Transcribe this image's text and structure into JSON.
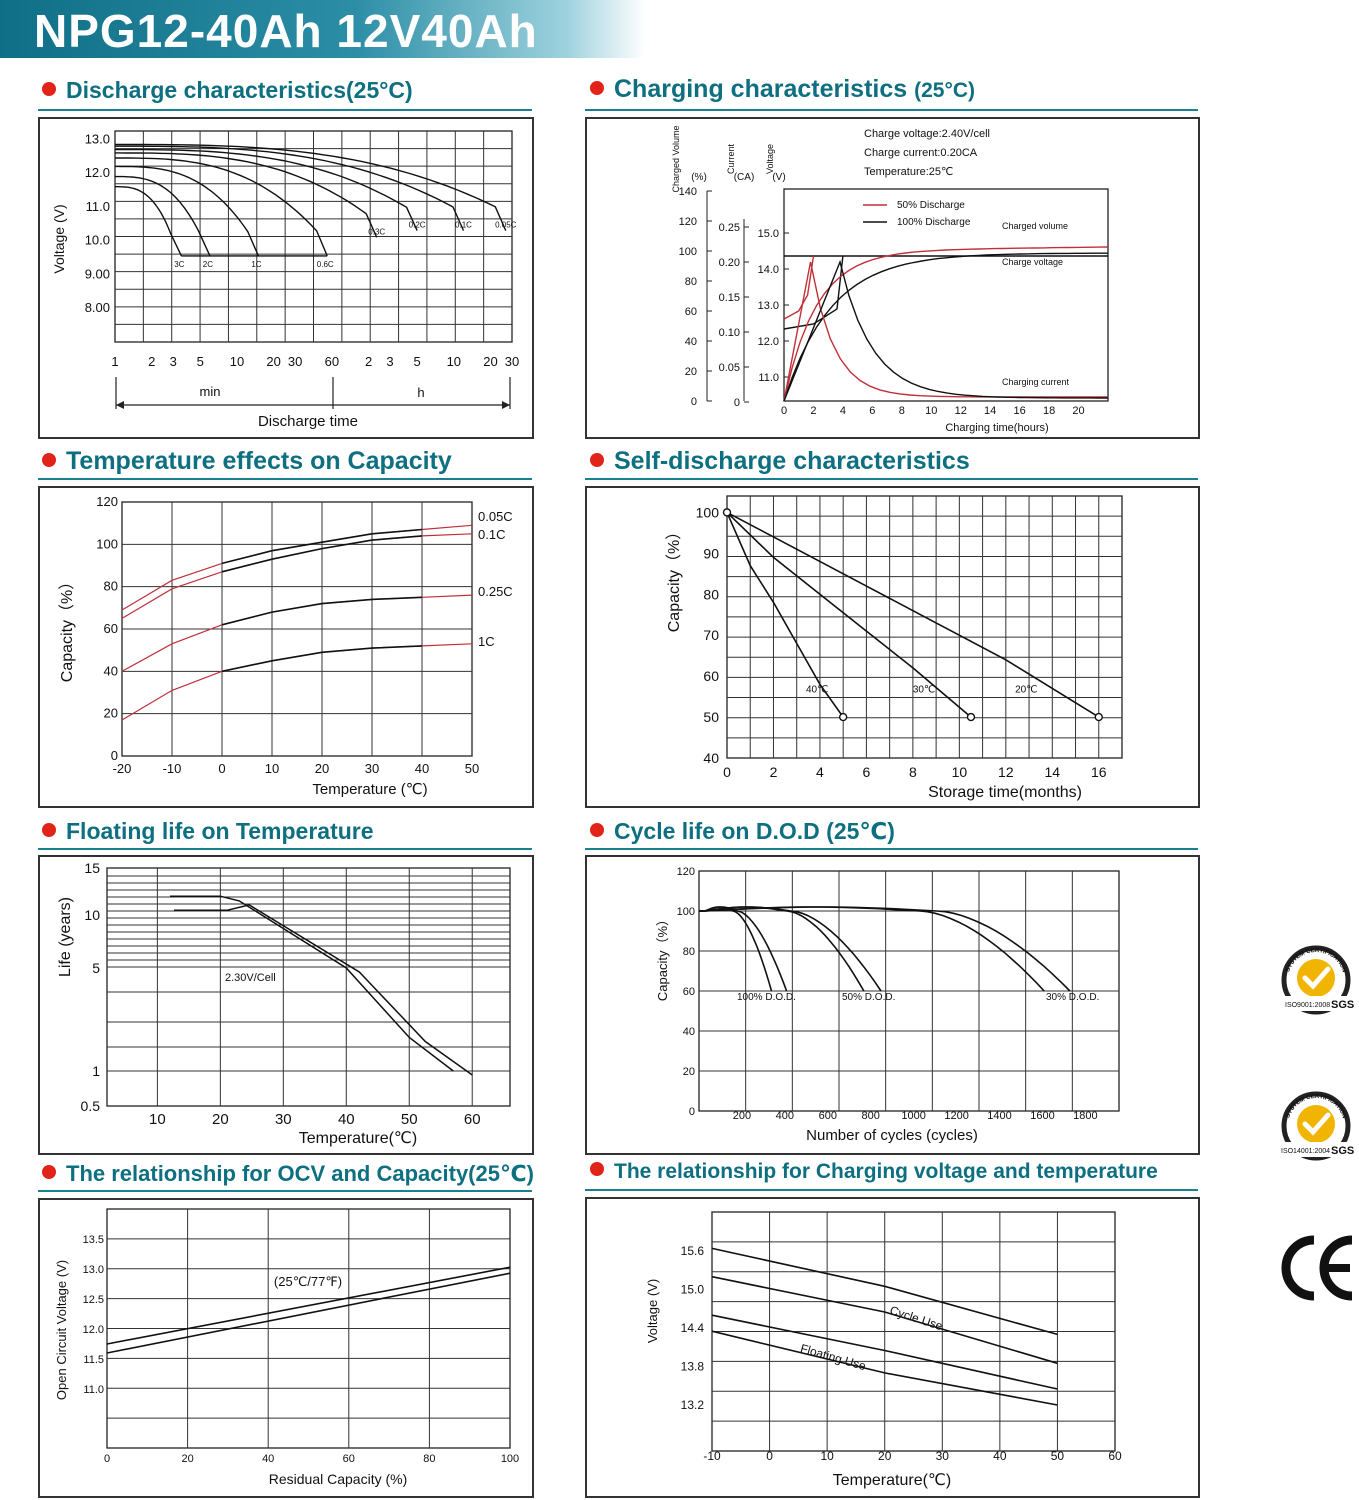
{
  "header": {
    "title": "NPG12-40Ah 12V40Ah",
    "accent": "#0f6f86"
  },
  "sections": {
    "discharge": "Discharge characteristics(25°C)",
    "charging": "Charging characteristics",
    "charging_suffix": "(25°C)",
    "temperature": "Temperature effects on Capacity",
    "self_discharge": "Self-discharge characteristics",
    "floating": "Floating life on Temperature",
    "cycle": "Cycle life on D.O.D (25℃)",
    "ocv": "The relationship for OCV and Capacity(25℃)",
    "charge_voltage": "The relationship for Charging voltage and temperature"
  },
  "certifications": {
    "iso9001_ring": "SYSTEM CERTIFICATION",
    "iso9001_std": "ISO9001:2008",
    "iso9001_brand": "SGS",
    "iso14001_ring": "SYSTEM CERTIFICATION",
    "iso14001_std": "ISO14001:2004",
    "iso14001_brand": "SGS",
    "ce_mark": "CE"
  },
  "chart_data": [
    {
      "id": "discharge",
      "type": "line",
      "title": "Discharge characteristics(25°C)",
      "ylabel": "Voltage (V)",
      "xlabel": "Discharge time",
      "y_ticks": [
        "13.0",
        "12.0",
        "11.0",
        "10.0",
        "9.00",
        "8.00"
      ],
      "x_ticks": [
        "1",
        "2",
        "3",
        "5",
        "10",
        "20",
        "30",
        "60",
        "2",
        "3",
        "5",
        "10",
        "20",
        "30"
      ],
      "x_units": [
        "min",
        "h"
      ],
      "series": [
        {
          "name": "3C",
          "end_min": 3.5
        },
        {
          "name": "2C",
          "end_min": 6
        },
        {
          "name": "1C",
          "end_min": 15
        },
        {
          "name": "0.6C",
          "end_min": 55
        },
        {
          "name": "0.3C",
          "end_min": 140
        },
        {
          "name": "0.2C",
          "end_min": 300
        },
        {
          "name": "0.1C",
          "end_min": 720
        },
        {
          "name": "0.05C",
          "end_min": 1600
        }
      ]
    },
    {
      "id": "charging",
      "type": "line",
      "notes": [
        "Charge voltage:2.40V/cell",
        "Charge current:0.20CA",
        "Temperature:25℃"
      ],
      "axis_names": [
        "Charged Volume",
        "Current",
        "Voltage"
      ],
      "axis_units": [
        "(%)",
        "(CA)",
        "(V)"
      ],
      "volume_ticks": [
        "140",
        "120",
        "100",
        "80",
        "60",
        "40",
        "20",
        "0"
      ],
      "current_ticks": [
        "0.25",
        "0.20",
        "0.15",
        "0.10",
        "0.05",
        "0"
      ],
      "voltage_ticks": [
        "15.0",
        "14.0",
        "13.0",
        "12.0",
        "11.0"
      ],
      "x_ticks": [
        "0",
        "2",
        "4",
        "6",
        "8",
        "10",
        "12",
        "14",
        "16",
        "18",
        "20"
      ],
      "xlabel": "Charging time(hours)",
      "legend": [
        "50% Discharge",
        "100% Discharge"
      ],
      "labels": [
        "Charged volume",
        "Charge voltage",
        "Charging current"
      ]
    },
    {
      "id": "temperature",
      "type": "line",
      "ylabel": "Capacity（%）",
      "xlabel": "Temperature (℃)",
      "y_ticks": [
        "120",
        "100",
        "80",
        "60",
        "40",
        "20",
        "0"
      ],
      "x_ticks": [
        "-20",
        "-10",
        "0",
        "10",
        "20",
        "30",
        "40",
        "50"
      ],
      "series": [
        {
          "name": "0.05C",
          "x": [
            -20,
            -10,
            0,
            10,
            20,
            30,
            40,
            50
          ],
          "y": [
            69,
            83,
            91,
            97,
            101,
            105,
            107,
            109
          ]
        },
        {
          "name": "0.1C",
          "x": [
            -20,
            -10,
            0,
            10,
            20,
            30,
            40,
            50
          ],
          "y": [
            65,
            79,
            87,
            93,
            98,
            102,
            104,
            105
          ]
        },
        {
          "name": "0.25C",
          "x": [
            -20,
            -10,
            0,
            10,
            20,
            30,
            40,
            50
          ],
          "y": [
            40,
            53,
            62,
            68,
            72,
            74,
            75,
            76
          ]
        },
        {
          "name": "1C",
          "x": [
            -20,
            -10,
            0,
            10,
            20,
            30,
            40,
            50
          ],
          "y": [
            17,
            31,
            40,
            45,
            49,
            51,
            52,
            53
          ]
        }
      ]
    },
    {
      "id": "self_discharge",
      "type": "line",
      "ylabel": "Capacity（%）",
      "xlabel": "Storage time(months)",
      "y_ticks": [
        "100",
        "90",
        "80",
        "70",
        "60",
        "50",
        "40"
      ],
      "x_ticks": [
        "0",
        "2",
        "4",
        "6",
        "8",
        "10",
        "12",
        "14",
        "16"
      ],
      "series": [
        {
          "name": "40℃",
          "x": [
            0,
            1,
            2,
            3,
            4,
            5
          ],
          "y": [
            100,
            87,
            78,
            68,
            58,
            50
          ]
        },
        {
          "name": "30℃",
          "x": [
            0,
            2,
            4,
            6,
            8,
            10.5
          ],
          "y": [
            100,
            89,
            80,
            71,
            62,
            50
          ]
        },
        {
          "name": "20℃",
          "x": [
            0,
            3,
            6,
            9,
            12,
            16
          ],
          "y": [
            100,
            91,
            82,
            73,
            64,
            50
          ]
        }
      ]
    },
    {
      "id": "floating",
      "type": "line",
      "ylabel": "Life (years)",
      "xlabel": "Temperature(℃)",
      "y_ticks": [
        "15",
        "10",
        "5",
        "1",
        "0.5"
      ],
      "x_ticks": [
        "10",
        "20",
        "30",
        "40",
        "50",
        "60"
      ],
      "annotation": "2.30V/Cell",
      "series": [
        {
          "name": "2.30V/Cell",
          "x": [
            12,
            20,
            23,
            40,
            50,
            57
          ],
          "y": [
            12,
            12,
            11.5,
            5,
            2.3,
            1
          ]
        }
      ]
    },
    {
      "id": "cycle",
      "type": "line",
      "ylabel": "Capacity（%）",
      "xlabel": "Number of cycles (cycles)",
      "y_ticks": [
        "120",
        "100",
        "80",
        "60",
        "40",
        "20",
        "0"
      ],
      "x_ticks": [
        "200",
        "400",
        "600",
        "800",
        "1000",
        "1200",
        "1400",
        "1600",
        "1800"
      ],
      "series": [
        {
          "name": "100% D.O.D.",
          "end_cycles": [
            310,
            380
          ]
        },
        {
          "name": "50% D.O.D.",
          "end_cycles": [
            740,
            820
          ]
        },
        {
          "name": "30% D.O.D.",
          "end_cycles": [
            1580,
            1700
          ]
        }
      ],
      "labels": [
        "100% D.O.D.",
        "50% D.O.D.",
        "30% D.O.D."
      ]
    },
    {
      "id": "ocv",
      "type": "line",
      "ylabel": "Open Circuit Voltage (V)",
      "xlabel": "Residual Capacity (%)",
      "y_ticks": [
        "13.5",
        "13.0",
        "12.5",
        "12.0",
        "11.5",
        "11.0"
      ],
      "x_ticks": [
        "0",
        "20",
        "40",
        "60",
        "80",
        "100"
      ],
      "annotation": "(25℃/77℉)",
      "series": [
        {
          "name": "upper",
          "x": [
            0,
            100
          ],
          "y": [
            11.75,
            13.03
          ]
        },
        {
          "name": "lower",
          "x": [
            0,
            100
          ],
          "y": [
            11.6,
            12.93
          ]
        }
      ]
    },
    {
      "id": "charge_voltage",
      "type": "line",
      "ylabel": "Voltage (V)",
      "xlabel": "Temperature(℃)",
      "y_ticks": [
        "15.6",
        "15.0",
        "14.4",
        "13.8",
        "13.2"
      ],
      "x_ticks": [
        "-10",
        "0",
        "10",
        "20",
        "30",
        "40",
        "50",
        "60"
      ],
      "labels": [
        "Cycle Use",
        "Floating Use"
      ]
    }
  ]
}
